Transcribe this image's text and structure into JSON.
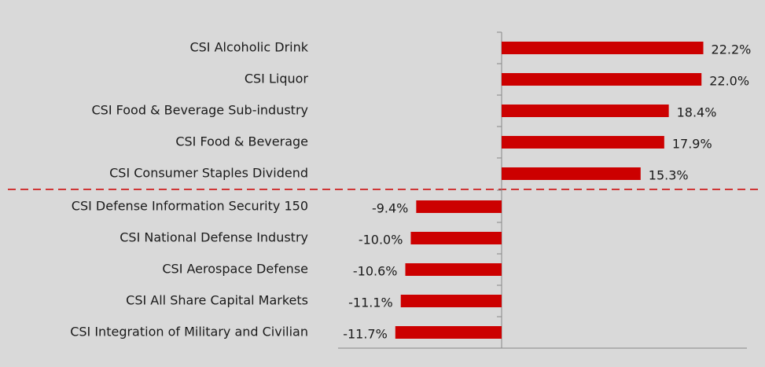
{
  "chart_data": {
    "type": "bar",
    "orientation": "horizontal",
    "categories": [
      "CSI Alcoholic Drink",
      "CSI Liquor",
      "CSI Food & Beverage Sub-industry",
      "CSI Food & Beverage",
      "CSI Consumer Staples Dividend",
      "CSI Defense Information Security 150",
      "CSI National Defense Industry",
      "CSI Aerospace Defense",
      "CSI All Share Capital Markets",
      "CSI Integration of Military and Civilian"
    ],
    "values": [
      22.2,
      22.0,
      18.4,
      17.9,
      15.3,
      -9.4,
      -10.0,
      -10.6,
      -11.1,
      -11.7
    ],
    "value_labels": [
      "22.2%",
      "22.0%",
      "18.4%",
      "17.9%",
      "15.3%",
      "-9.4%",
      "-10.0%",
      "-10.6%",
      "-11.1%",
      "-11.7%"
    ],
    "color": "#cc0000",
    "xlim": [
      -18,
      27
    ]
  }
}
